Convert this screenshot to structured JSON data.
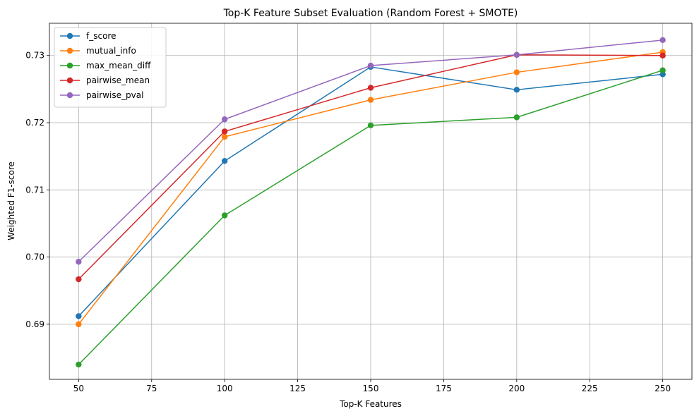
{
  "chart_data": {
    "type": "line",
    "title": "Top-K Feature Subset Evaluation (Random Forest + SMOTE)",
    "xlabel": "Top-K Features",
    "ylabel": "Weighted F1-score",
    "x": [
      50,
      100,
      150,
      200,
      250
    ],
    "xlim": [
      40,
      260
    ],
    "ylim": [
      0.6818,
      0.7348
    ],
    "xticks": [
      50,
      75,
      100,
      125,
      150,
      175,
      200,
      225,
      250
    ],
    "yticks": [
      0.69,
      0.7,
      0.71,
      0.72,
      0.73
    ],
    "xtick_labels": [
      "50",
      "75",
      "100",
      "125",
      "150",
      "175",
      "200",
      "225",
      "250"
    ],
    "ytick_labels": [
      "0.69",
      "0.70",
      "0.71",
      "0.72",
      "0.73"
    ],
    "grid": true,
    "legend_position": "upper-left",
    "series": [
      {
        "name": "f_score",
        "color": "#1f77b4",
        "values": [
          0.6912,
          0.7143,
          0.7283,
          0.7249,
          0.7272
        ]
      },
      {
        "name": "mutual_info",
        "color": "#ff7f0e",
        "values": [
          0.69,
          0.7179,
          0.7234,
          0.7275,
          0.7305
        ]
      },
      {
        "name": "max_mean_diff",
        "color": "#2ca02c",
        "values": [
          0.684,
          0.7062,
          0.7196,
          0.7208,
          0.7278
        ]
      },
      {
        "name": "pairwise_mean",
        "color": "#d62728",
        "values": [
          0.6967,
          0.7187,
          0.7252,
          0.7301,
          0.73
        ]
      },
      {
        "name": "pairwise_pval",
        "color": "#9467bd",
        "values": [
          0.6993,
          0.7205,
          0.7285,
          0.7301,
          0.7323
        ]
      }
    ]
  }
}
